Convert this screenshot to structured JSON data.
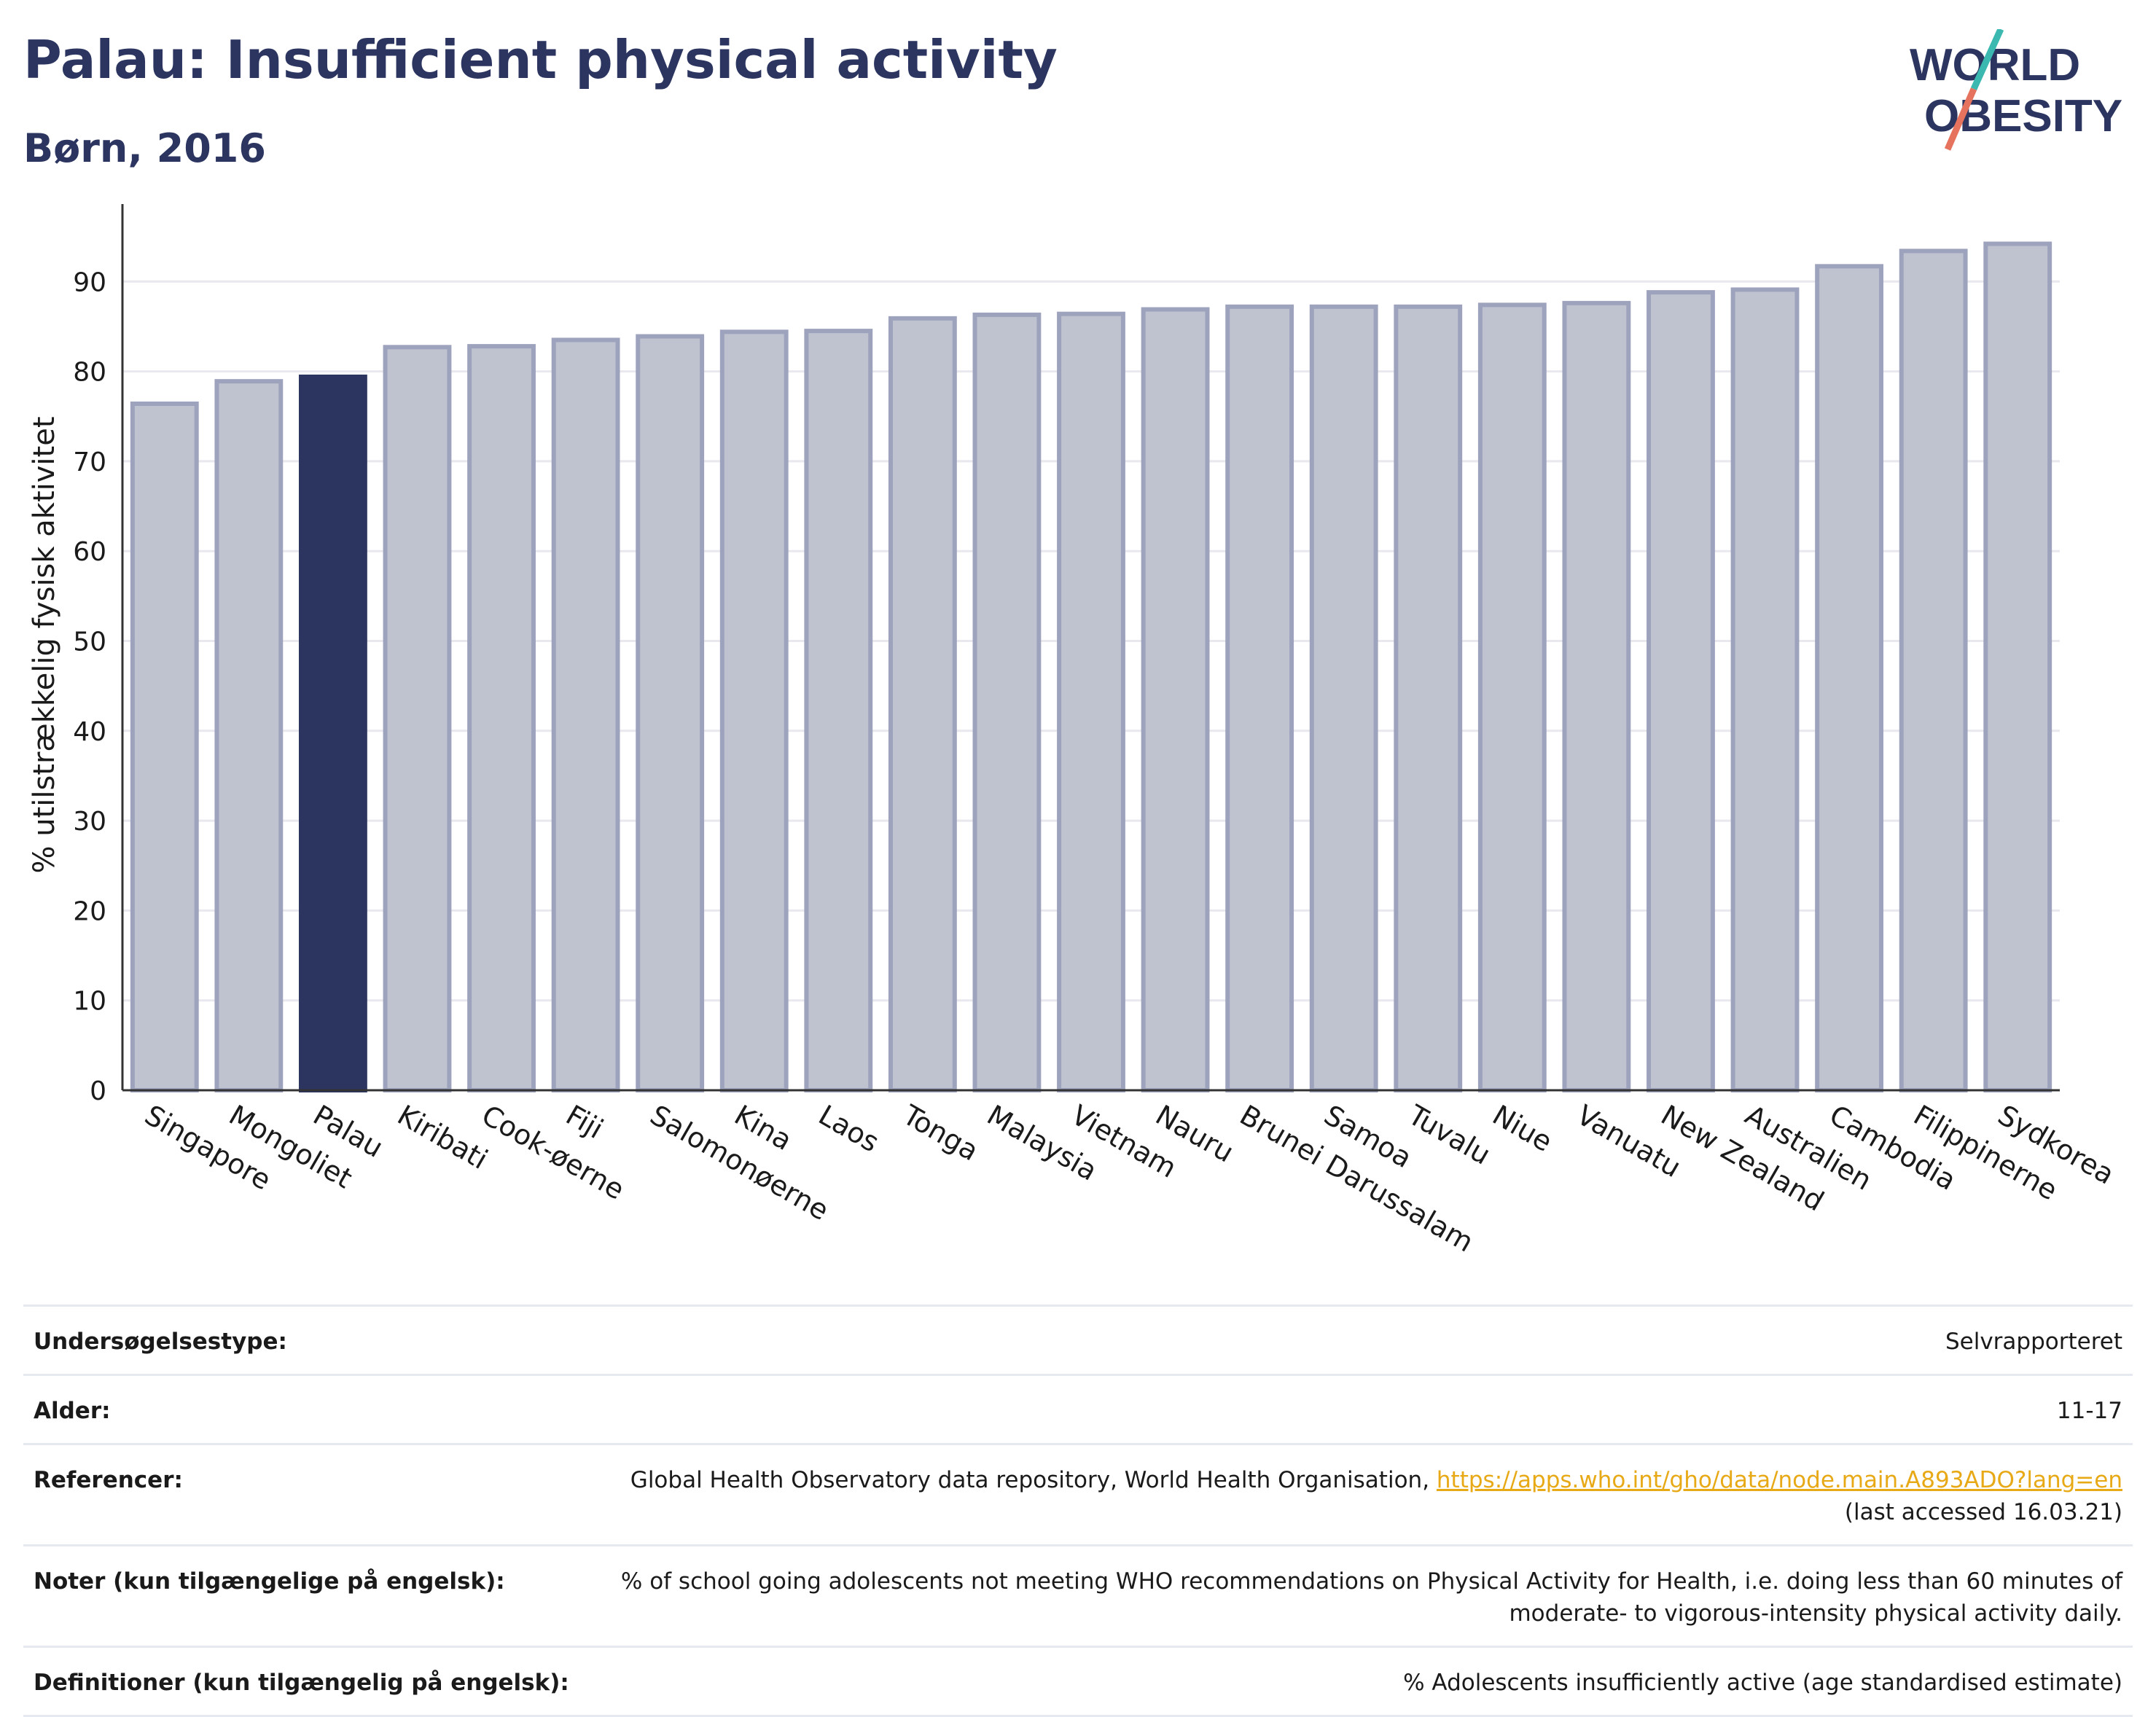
{
  "header": {
    "title": "Palau: Insufficient physical activity",
    "subtitle": "Børn, 2016"
  },
  "logo": {
    "line1": "WORLD",
    "line2": "OBESITY",
    "colors": {
      "text": "#2b3560",
      "slash_teal": "#3bb8b0",
      "slash_red": "#e5735e"
    }
  },
  "colors": {
    "bar_fill": "#bfc3d0",
    "bar_stroke": "#9ea3bd",
    "highlight_fill": "#2b3560",
    "grid": "#e8e8ee",
    "axis": "#333333"
  },
  "chart_data": {
    "type": "bar",
    "ylabel": "% utilstrækkelig fysisk aktivitet",
    "ylim": [
      0,
      97
    ],
    "yticks": [
      0,
      10,
      20,
      30,
      40,
      50,
      60,
      70,
      80,
      90
    ],
    "grid": true,
    "highlight": "Palau",
    "categories": [
      "Singapore",
      "Mongoliet",
      "Palau",
      "Kiribati",
      "Cook-øerne",
      "Fiji",
      "Salomonøerne",
      "Kina",
      "Laos",
      "Tonga",
      "Malaysia",
      "Vietnam",
      "Nauru",
      "Brunei Darussalam",
      "Samoa",
      "Tuvalu",
      "Niue",
      "Vanuatu",
      "New Zealand",
      "Australien",
      "Cambodia",
      "Filippinerne",
      "Sydkorea"
    ],
    "values": [
      76.4,
      78.9,
      79.4,
      82.7,
      82.8,
      83.5,
      83.9,
      84.4,
      84.5,
      85.9,
      86.3,
      86.4,
      86.9,
      87.2,
      87.2,
      87.2,
      87.4,
      87.6,
      88.8,
      89.1,
      91.7,
      93.4,
      94.2
    ]
  },
  "info": {
    "rows": [
      {
        "label": "Undersøgelsestype:",
        "value": "Selvrapporteret"
      },
      {
        "label": "Alder:",
        "value": "11-17"
      },
      {
        "label": "Referencer:",
        "value": "Global Health Observatory data repository, World Health Organisation, ",
        "link": "https://apps.who.int/gho/data/node.main.A893ADO?lang=en",
        "value2": "(last accessed 16.03.21)"
      },
      {
        "label": "Noter (kun tilgængelige på engelsk):",
        "value": "% of school going adolescents not meeting WHO recommendations on Physical Activity for Health, i.e. doing less than 60 minutes of moderate- to vigorous-intensity physical activity daily."
      },
      {
        "label": "Definitioner (kun tilgængelig på engelsk):",
        "value": "% Adolescents insufficiently active (age standardised estimate)"
      }
    ]
  }
}
